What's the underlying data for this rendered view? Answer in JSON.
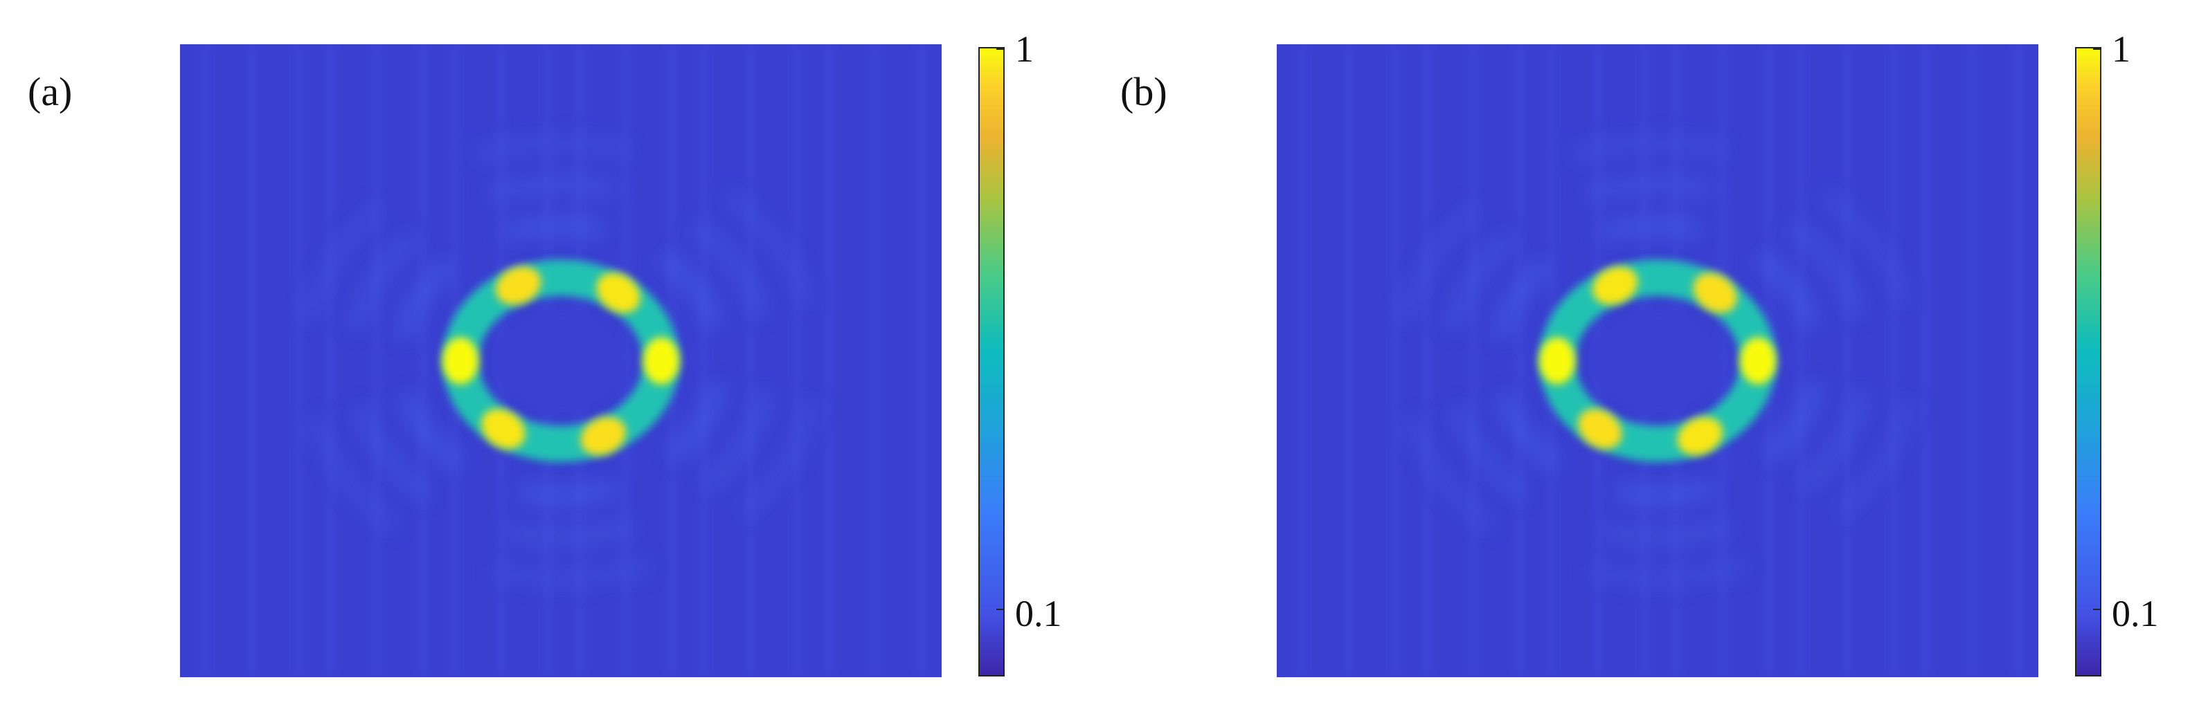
{
  "chart_data": [
    {
      "type": "heatmap",
      "panel_label": "(a)",
      "pattern": "hexagonal ring of six bright lobes with weaker concentric side fringes",
      "colormap": "parula",
      "colorbar": {
        "scale": "log",
        "range": [
          0.08,
          1
        ],
        "tick_labels": [
          "1",
          "0.1"
        ],
        "tick_values": [
          1,
          0.1
        ]
      },
      "peak_lobes": [
        {
          "angle_deg": 0,
          "intensity": 1.0
        },
        {
          "angle_deg": 55,
          "intensity": 0.85
        },
        {
          "angle_deg": 115,
          "intensity": 0.8
        },
        {
          "angle_deg": 180,
          "intensity": 1.0
        },
        {
          "angle_deg": 235,
          "intensity": 0.85
        },
        {
          "angle_deg": 295,
          "intensity": 0.8
        }
      ]
    },
    {
      "type": "heatmap",
      "panel_label": "(b)",
      "pattern": "hexagonal ring of six bright lobes with weaker concentric side fringes",
      "colormap": "parula",
      "colorbar": {
        "scale": "log",
        "range": [
          0.08,
          1
        ],
        "tick_labels": [
          "1",
          "0.1"
        ],
        "tick_values": [
          1,
          0.1
        ]
      },
      "peak_lobes": [
        {
          "angle_deg": 0,
          "intensity": 1.0
        },
        {
          "angle_deg": 55,
          "intensity": 0.8
        },
        {
          "angle_deg": 115,
          "intensity": 0.85
        },
        {
          "angle_deg": 180,
          "intensity": 1.0
        },
        {
          "angle_deg": 235,
          "intensity": 0.8
        },
        {
          "angle_deg": 295,
          "intensity": 0.85
        }
      ]
    }
  ]
}
